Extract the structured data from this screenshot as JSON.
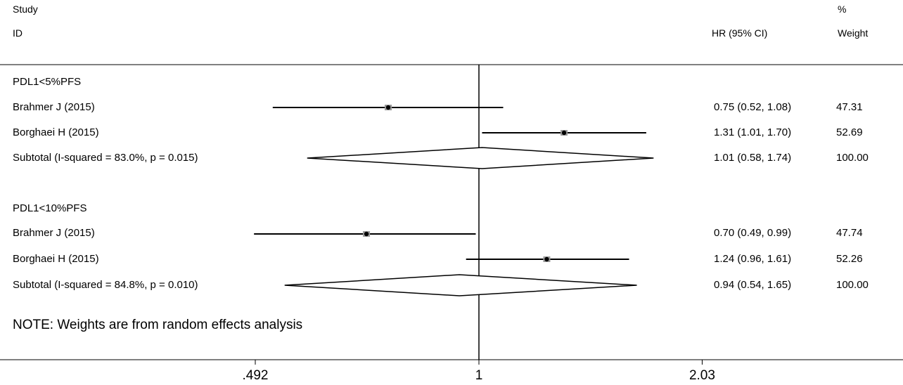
{
  "header": {
    "study_label": "Study",
    "id_label": "ID",
    "effect_label": "HR (95% CI)",
    "pct_label": "%",
    "weight_label": "Weight"
  },
  "note": "NOTE: Weights are from random effects analysis",
  "chart_data": {
    "type": "forest",
    "x_scale": "log",
    "null_line": 1,
    "ticks": [
      {
        "value": 0.492,
        "label": ".492"
      },
      {
        "value": 1,
        "label": "1"
      },
      {
        "value": 2.03,
        "label": "2.03"
      }
    ],
    "groups": [
      {
        "name": "PDL1<5%PFS",
        "studies": [
          {
            "label": "Brahmer J (2015)",
            "hr": 0.75,
            "lo": 0.52,
            "hi": 1.08,
            "ci_text": "0.75 (0.52, 1.08)",
            "weight": "47.31"
          },
          {
            "label": "Borghaei  H (2015)",
            "hr": 1.31,
            "lo": 1.01,
            "hi": 1.7,
            "ci_text": "1.31 (1.01, 1.70)",
            "weight": "52.69"
          }
        ],
        "subtotal": {
          "label": "Subtotal  (I-squared = 83.0%, p = 0.015)",
          "hr": 1.01,
          "lo": 0.58,
          "hi": 1.74,
          "ci_text": "1.01 (0.58, 1.74)",
          "weight": "100.00"
        }
      },
      {
        "name": "PDL1<10%PFS",
        "studies": [
          {
            "label": "Brahmer J (2015)",
            "hr": 0.7,
            "lo": 0.49,
            "hi": 0.99,
            "ci_text": "0.70 (0.49, 0.99)",
            "weight": "47.74"
          },
          {
            "label": "Borghaei  H (2015)",
            "hr": 1.24,
            "lo": 0.96,
            "hi": 1.61,
            "ci_text": "1.24 (0.96, 1.61)",
            "weight": "52.26"
          }
        ],
        "subtotal": {
          "label": "Subtotal  (I-squared = 84.8%, p = 0.010)",
          "hr": 0.94,
          "lo": 0.54,
          "hi": 1.65,
          "ci_text": "0.94 (0.54, 1.65)",
          "weight": "100.00"
        }
      }
    ]
  }
}
